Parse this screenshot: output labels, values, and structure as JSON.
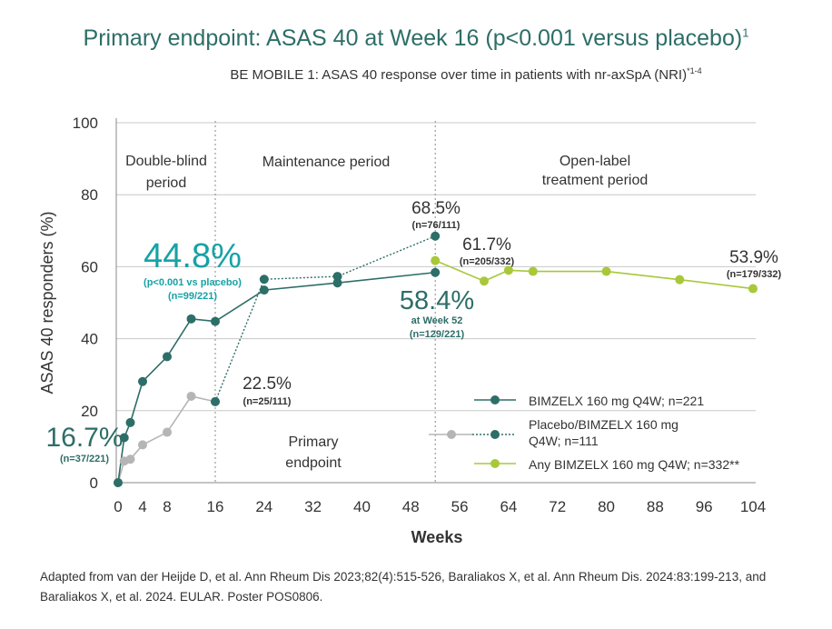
{
  "title": "Primary endpoint: ASAS 40 at Week 16 (p<0.001 versus placebo)",
  "title_sup": "1",
  "subtitle": "BE MOBILE 1: ASAS 40 response over time in patients with nr-axSpA (NRI)",
  "subtitle_sup": "*1-4",
  "source": "Adapted from van der Heijde D, et al. Ann Rheum Dis 2023;82(4):515-526, Baraliakos X, et al. Ann Rheum Dis. 2024:83:199-213, and Baraliakos X, et al. 2024. EULAR. Poster POS0806.",
  "colors": {
    "title": "#2d6e68",
    "bimzelx": "#2d6e68",
    "placebo": "#b5b5b5",
    "openlabel": "#a8c83a",
    "highlight": "#17a2a6",
    "text": "#333333"
  },
  "chart_data": {
    "type": "line",
    "xlabel": "Weeks",
    "ylabel": "ASAS 40 responders (%)",
    "xlim": [
      0,
      104
    ],
    "ylim": [
      0,
      100
    ],
    "xticks": [
      0,
      4,
      8,
      16,
      24,
      32,
      40,
      48,
      56,
      64,
      72,
      80,
      88,
      96,
      104
    ],
    "yticks": [
      0,
      20,
      40,
      60,
      80,
      100
    ],
    "grid": "horizontal",
    "period_dividers": [
      16,
      52
    ],
    "periods": [
      "Double-blind period",
      "Maintenance period",
      "Open-label treatment period"
    ],
    "primary_endpoint_label": "Primary endpoint",
    "series": [
      {
        "name": "BIMZELX 160 mg Q4W; n=221",
        "x": [
          0,
          1,
          2,
          4,
          8,
          12,
          16,
          24,
          36,
          52
        ],
        "y": [
          0,
          12.5,
          16.7,
          28.1,
          35,
          45.5,
          44.8,
          53.5,
          55.5,
          58.4
        ]
      },
      {
        "name": "Placebo/BIMZELX 160 mg Q4W; n=111",
        "x": [
          0,
          1,
          2,
          4,
          8,
          12,
          16
        ],
        "y": [
          0,
          6,
          6.5,
          10.5,
          14,
          24,
          22.5
        ]
      },
      {
        "name": "Placebo/BIMZELX 160 mg Q4W; n=111 (switched to BIMZELX)",
        "x": [
          16,
          24,
          36,
          52
        ],
        "y": [
          22.5,
          56.5,
          57.3,
          68.5
        ]
      },
      {
        "name": "Any BIMZELX 160 mg Q4W; n=332**",
        "x": [
          52,
          60,
          64,
          68,
          80,
          92,
          104
        ],
        "y": [
          61.7,
          56,
          59,
          58.7,
          58.7,
          56.4,
          53.9
        ]
      }
    ],
    "legend": [
      "BIMZELX 160 mg Q4W; n=221",
      "Placebo/BIMZELX 160 mg Q4W; n=111",
      "Any BIMZELX 160 mg Q4W; n=332**"
    ],
    "legend_placement": "bottom-right",
    "annotations": [
      {
        "value": "44.8%",
        "detail": [
          "(p<0.001 vs placebo)",
          "(n=99/221)"
        ]
      },
      {
        "value": "16.7%",
        "detail": [
          "(n=37/221)"
        ]
      },
      {
        "value": "22.5%",
        "detail": [
          "(n=25/111)"
        ]
      },
      {
        "value": "68.5%",
        "detail": [
          "(n=76/111)"
        ]
      },
      {
        "value": "61.7%",
        "detail": [
          "(n=205/332)"
        ]
      },
      {
        "value": "58.4%",
        "detail": [
          "at Week 52",
          "(n=129/221)"
        ]
      },
      {
        "value": "53.9%",
        "detail": [
          "(n=179/332)"
        ]
      }
    ]
  }
}
